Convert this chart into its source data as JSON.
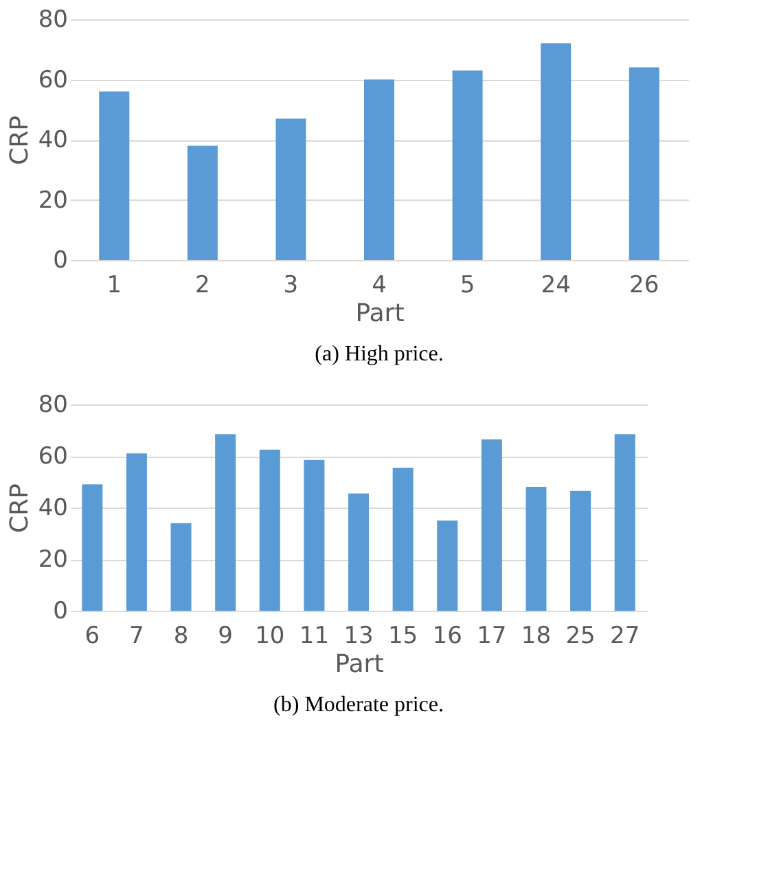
{
  "chart_data": [
    {
      "type": "bar",
      "categories": [
        "1",
        "2",
        "3",
        "4",
        "5",
        "24",
        "26"
      ],
      "values": [
        56,
        38,
        47,
        60,
        63,
        72,
        64
      ],
      "color": "#5b9bd5",
      "xlabel": "Part",
      "ylabel": "CRP",
      "ylim": [
        0,
        80
      ],
      "yticks": [
        0,
        20,
        40,
        60,
        80
      ],
      "grid": "y",
      "annotations": [
        "(a) High price."
      ]
    },
    {
      "type": "bar",
      "categories": [
        "6",
        "7",
        "8",
        "9",
        "10",
        "11",
        "13",
        "15",
        "16",
        "17",
        "18",
        "25",
        "27"
      ],
      "values": [
        49,
        61,
        34,
        68.5,
        62.5,
        58.5,
        45.5,
        55.5,
        35,
        66.5,
        48,
        46.5,
        68.5
      ],
      "color": "#5b9bd5",
      "xlabel": "Part",
      "ylabel": "CRP",
      "ylim": [
        0,
        80
      ],
      "yticks": [
        0,
        20,
        40,
        60,
        80
      ],
      "grid": "y",
      "annotations": [
        "(b) Moderate price."
      ]
    }
  ]
}
